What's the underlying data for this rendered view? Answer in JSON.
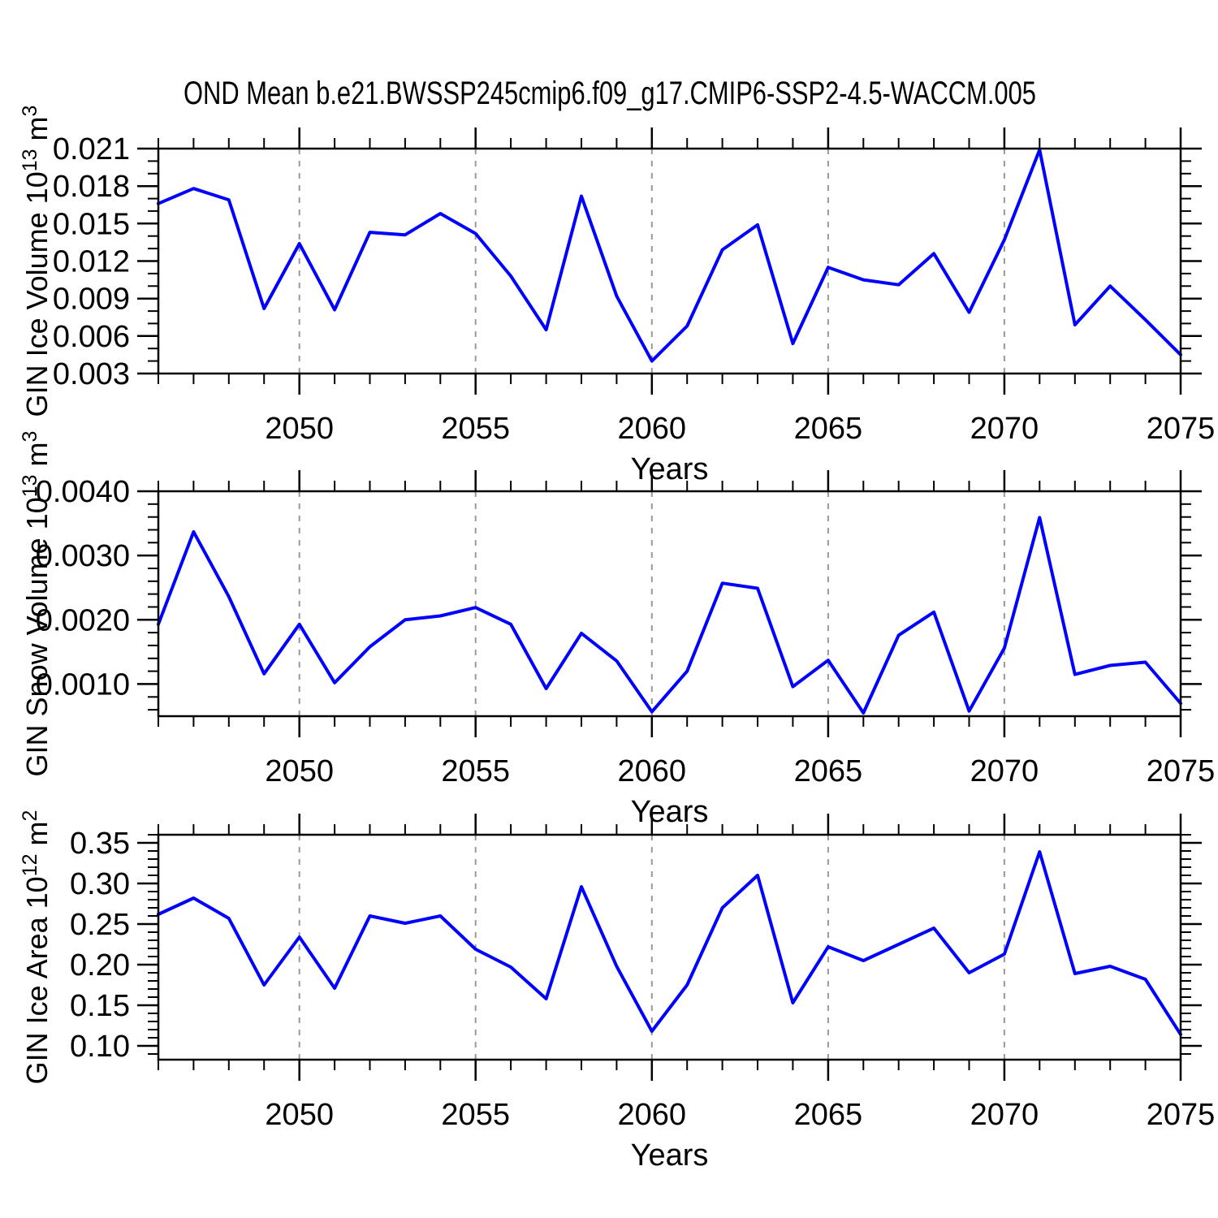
{
  "title": "OND Mean b.e21.BWSSP245cmip6.f09_g17.CMIP6-SSP2-4.5-WACCM.005",
  "colors": {
    "line": "#0000ff",
    "axis": "#000000",
    "grid": "#999999",
    "text": "#000000",
    "background": "#ffffff"
  },
  "chart_data": [
    {
      "type": "line",
      "id": "gin-ice-volume",
      "ylabel": "GIN Ice Volume 10^13 m^3",
      "ylabel_parts": [
        {
          "t": "GIN Ice Volume 10"
        },
        {
          "t": "13",
          "sup": true
        },
        {
          "t": " m"
        },
        {
          "t": "3",
          "sup": true
        }
      ],
      "xlabel": "Years",
      "xlim": [
        2046,
        2075
      ],
      "ylim": [
        0.003,
        0.021
      ],
      "xticks": [
        2050,
        2055,
        2060,
        2065,
        2070,
        2075
      ],
      "xtick_labels": [
        "2050",
        "2055",
        "2060",
        "2065",
        "2070",
        "2075"
      ],
      "grid_x": [
        2050,
        2055,
        2060,
        2065,
        2070
      ],
      "yticks": [
        0.003,
        0.006,
        0.009,
        0.012,
        0.015,
        0.018,
        0.021
      ],
      "ytick_labels": [
        "0.003",
        "0.006",
        "0.009",
        "0.012",
        "0.015",
        "0.018",
        "0.021"
      ],
      "yminor": [
        0.004,
        0.005,
        0.007,
        0.008,
        0.01,
        0.011,
        0.013,
        0.014,
        0.016,
        0.017,
        0.019,
        0.02
      ],
      "x": [
        2046,
        2047,
        2048,
        2049,
        2050,
        2051,
        2052,
        2053,
        2054,
        2055,
        2056,
        2057,
        2058,
        2059,
        2060,
        2061,
        2062,
        2063,
        2064,
        2065,
        2066,
        2067,
        2068,
        2069,
        2070,
        2071,
        2072,
        2073,
        2074,
        2075
      ],
      "values": [
        0.0166,
        0.0178,
        0.0169,
        0.0082,
        0.0134,
        0.0081,
        0.0143,
        0.0141,
        0.0158,
        0.0142,
        0.0108,
        0.0065,
        0.0172,
        0.0092,
        0.004,
        0.0068,
        0.0129,
        0.0149,
        0.0054,
        0.0115,
        0.0105,
        0.0101,
        0.0126,
        0.0079,
        0.0137,
        0.0209,
        0.0069,
        0.01,
        0.0073,
        0.0045
      ]
    },
    {
      "type": "line",
      "id": "gin-snow-volume",
      "ylabel": "GIN Snow Volume 10^13 m^3",
      "ylabel_parts": [
        {
          "t": "GIN Snow Volume 10"
        },
        {
          "t": "13",
          "sup": true
        },
        {
          "t": " m"
        },
        {
          "t": "3",
          "sup": true
        }
      ],
      "xlabel": "Years",
      "xlim": [
        2046,
        2075
      ],
      "ylim": [
        0.0005,
        0.004
      ],
      "xticks": [
        2050,
        2055,
        2060,
        2065,
        2070,
        2075
      ],
      "xtick_labels": [
        "2050",
        "2055",
        "2060",
        "2065",
        "2070",
        "2075"
      ],
      "grid_x": [
        2050,
        2055,
        2060,
        2065,
        2070
      ],
      "yticks": [
        0.001,
        0.002,
        0.003,
        0.004
      ],
      "ytick_labels": [
        "0.0010",
        "0.0020",
        "0.0030",
        "0.0040"
      ],
      "yminor": [
        0.0006,
        0.0008,
        0.0012,
        0.0014,
        0.0016,
        0.0018,
        0.0022,
        0.0024,
        0.0026,
        0.0028,
        0.0032,
        0.0034,
        0.0036,
        0.0038
      ],
      "x": [
        2046,
        2047,
        2048,
        2049,
        2050,
        2051,
        2052,
        2053,
        2054,
        2055,
        2056,
        2057,
        2058,
        2059,
        2060,
        2061,
        2062,
        2063,
        2064,
        2065,
        2066,
        2067,
        2068,
        2069,
        2070,
        2071,
        2072,
        2073,
        2074,
        2075
      ],
      "values": [
        0.00193,
        0.00337,
        0.00236,
        0.00116,
        0.00193,
        0.00102,
        0.00158,
        0.002,
        0.00206,
        0.00219,
        0.00193,
        0.00093,
        0.00179,
        0.00136,
        0.00057,
        0.0012,
        0.00257,
        0.00249,
        0.00096,
        0.00137,
        0.00055,
        0.00176,
        0.00212,
        0.00058,
        0.00156,
        0.00359,
        0.00115,
        0.00129,
        0.00134,
        0.0007
      ]
    },
    {
      "type": "line",
      "id": "gin-ice-area",
      "ylabel": "GIN Ice Area 10^12 m^2",
      "ylabel_parts": [
        {
          "t": "GIN Ice Area 10"
        },
        {
          "t": "12",
          "sup": true
        },
        {
          "t": " m"
        },
        {
          "t": "2",
          "sup": true
        }
      ],
      "xlabel": "Years",
      "xlim": [
        2046,
        2075
      ],
      "ylim": [
        0.083,
        0.36
      ],
      "xticks": [
        2050,
        2055,
        2060,
        2065,
        2070,
        2075
      ],
      "xtick_labels": [
        "2050",
        "2055",
        "2060",
        "2065",
        "2070",
        "2075"
      ],
      "grid_x": [
        2050,
        2055,
        2060,
        2065,
        2070
      ],
      "yticks": [
        0.1,
        0.15,
        0.2,
        0.25,
        0.3,
        0.35
      ],
      "ytick_labels": [
        "0.10",
        "0.15",
        "0.20",
        "0.25",
        "0.30",
        "0.35"
      ],
      "yminor": [
        0.09,
        0.11,
        0.12,
        0.13,
        0.14,
        0.16,
        0.17,
        0.18,
        0.19,
        0.21,
        0.22,
        0.23,
        0.24,
        0.26,
        0.27,
        0.28,
        0.29,
        0.31,
        0.32,
        0.33,
        0.34,
        0.36
      ],
      "x": [
        2046,
        2047,
        2048,
        2049,
        2050,
        2051,
        2052,
        2053,
        2054,
        2055,
        2056,
        2057,
        2058,
        2059,
        2060,
        2061,
        2062,
        2063,
        2064,
        2065,
        2066,
        2067,
        2068,
        2069,
        2070,
        2071,
        2072,
        2073,
        2074,
        2075
      ],
      "values": [
        0.262,
        0.282,
        0.257,
        0.175,
        0.234,
        0.171,
        0.26,
        0.251,
        0.26,
        0.219,
        0.197,
        0.158,
        0.296,
        0.198,
        0.118,
        0.175,
        0.27,
        0.31,
        0.153,
        0.222,
        0.205,
        0.225,
        0.245,
        0.19,
        0.213,
        0.339,
        0.189,
        0.198,
        0.182,
        0.114
      ]
    }
  ]
}
